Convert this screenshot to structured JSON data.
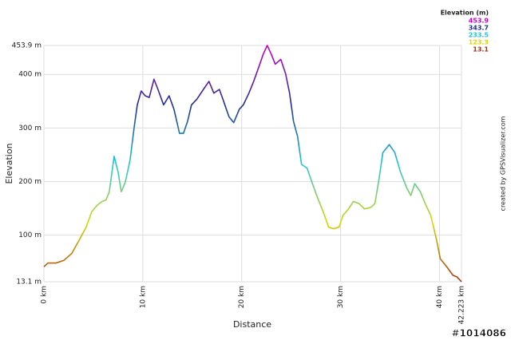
{
  "chart_data": {
    "type": "line",
    "xlabel": "Distance",
    "ylabel": "Elevation",
    "x": [
      0,
      0.4,
      1.21,
      2.02,
      2.82,
      3.63,
      4.27,
      4.84,
      5.4,
      5.89,
      6.29,
      6.61,
      7.1,
      7.5,
      7.82,
      8.23,
      8.71,
      9.11,
      9.44,
      9.84,
      10.24,
      10.65,
      11.13,
      11.53,
      12.1,
      12.66,
      13.15,
      13.71,
      14.11,
      14.52,
      14.92,
      15.48,
      16.13,
      16.69,
      17.18,
      17.74,
      18.15,
      18.71,
      19.19,
      19.76,
      20.16,
      20.73,
      21.21,
      21.77,
      22.18,
      22.58,
      22.98,
      23.39,
      23.95,
      24.44,
      24.84,
      25.24,
      25.65,
      26.05,
      26.61,
      27.02,
      27.58,
      28.23,
      28.79,
      29.27,
      29.84,
      30.24,
      30.81,
      31.29,
      31.85,
      32.42,
      33.06,
      33.47,
      33.87,
      34.27,
      34.92,
      35.48,
      36.05,
      36.69,
      37.1,
      37.5,
      38.06,
      38.55,
      39.11,
      39.68,
      40.08,
      40.73,
      41.37,
      41.77,
      42.223
    ],
    "values": [
      41,
      48,
      48,
      53,
      66,
      93,
      115,
      144,
      156,
      163,
      166,
      181,
      247,
      218,
      181,
      199,
      240,
      299,
      343,
      369,
      360,
      357,
      391,
      372,
      343,
      360,
      335,
      290,
      290,
      312,
      343,
      354,
      372,
      387,
      365,
      372,
      351,
      321,
      310,
      335,
      343,
      365,
      387,
      416,
      438,
      453.9,
      438,
      419,
      428,
      401,
      365,
      312,
      284,
      232,
      225,
      203,
      174,
      144,
      115,
      112,
      115,
      137,
      149,
      163,
      159,
      149,
      152,
      159,
      203,
      254,
      269,
      254,
      218,
      188,
      174,
      196,
      181,
      159,
      137,
      93,
      56,
      41,
      25,
      22,
      13.1
    ],
    "xlim": [
      0,
      42.223
    ],
    "xticks": [
      {
        "value": 0,
        "label": "0 km"
      },
      {
        "value": 10,
        "label": "10 km"
      },
      {
        "value": 20,
        "label": "20 km"
      },
      {
        "value": 30,
        "label": "30 km"
      },
      {
        "value": 40,
        "label": "40 km"
      },
      {
        "value": 42.223,
        "label": "42.223 km"
      }
    ],
    "ylim": [
      13.1,
      453.9
    ],
    "yticks": [
      {
        "value": 13.1,
        "label": "13.1 m"
      },
      {
        "value": 100,
        "label": "100 m"
      },
      {
        "value": 200,
        "label": "200 m"
      },
      {
        "value": 300,
        "label": "300 m"
      },
      {
        "value": 400,
        "label": "400 m"
      },
      {
        "value": 453.9,
        "label": "453.9 m"
      }
    ],
    "grid": true,
    "color_scale": {
      "title": "Elevation (m)",
      "stops": [
        {
          "value": 453.9,
          "color": "#cc00cc"
        },
        {
          "value": 343.7,
          "color": "#1e2f99"
        },
        {
          "value": 233.5,
          "color": "#1ec8d8"
        },
        {
          "value": 123.3,
          "color": "#d8d800"
        },
        {
          "value": 13.1,
          "color": "#b03010"
        }
      ]
    },
    "credit": "created by GPSVisualizer.com",
    "watermark": "#1014086"
  }
}
